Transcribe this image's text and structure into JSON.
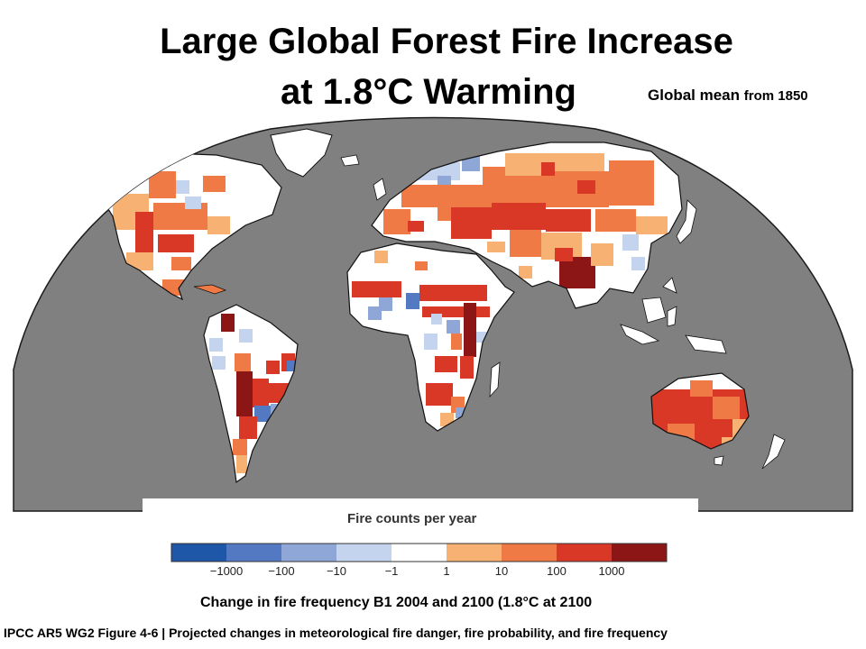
{
  "title": {
    "line1": "Large Global Forest Fire Increase",
    "line2": "at 1.8°C Warming"
  },
  "global_mean": {
    "prefix": "Global mean",
    "suffix": "from 1850"
  },
  "legend": {
    "title": "Fire counts per year",
    "bins": [
      {
        "color": "#1f57a8"
      },
      {
        "color": "#5279c2"
      },
      {
        "color": "#8fa7d6"
      },
      {
        "color": "#c4d3ee"
      },
      {
        "color": "#ffffff"
      },
      {
        "color": "#f7b273"
      },
      {
        "color": "#f07a45"
      },
      {
        "color": "#d93826"
      },
      {
        "color": "#8c1616"
      }
    ],
    "tick_labels": [
      "−1000",
      "−100",
      "−10",
      "−1",
      "1",
      "10",
      "100",
      "1000"
    ]
  },
  "map": {
    "ocean_color": "#808080",
    "land_base_color": "#ffffff",
    "outline_color": "#111111"
  },
  "caption": "Change in fire frequency  B1 2004 and 2100 (1.8°C at 2100",
  "source": "IPCC AR5 WG2 Figure 4-6 | Projected changes in meteorological fire danger, fire probability, and fire frequency"
}
